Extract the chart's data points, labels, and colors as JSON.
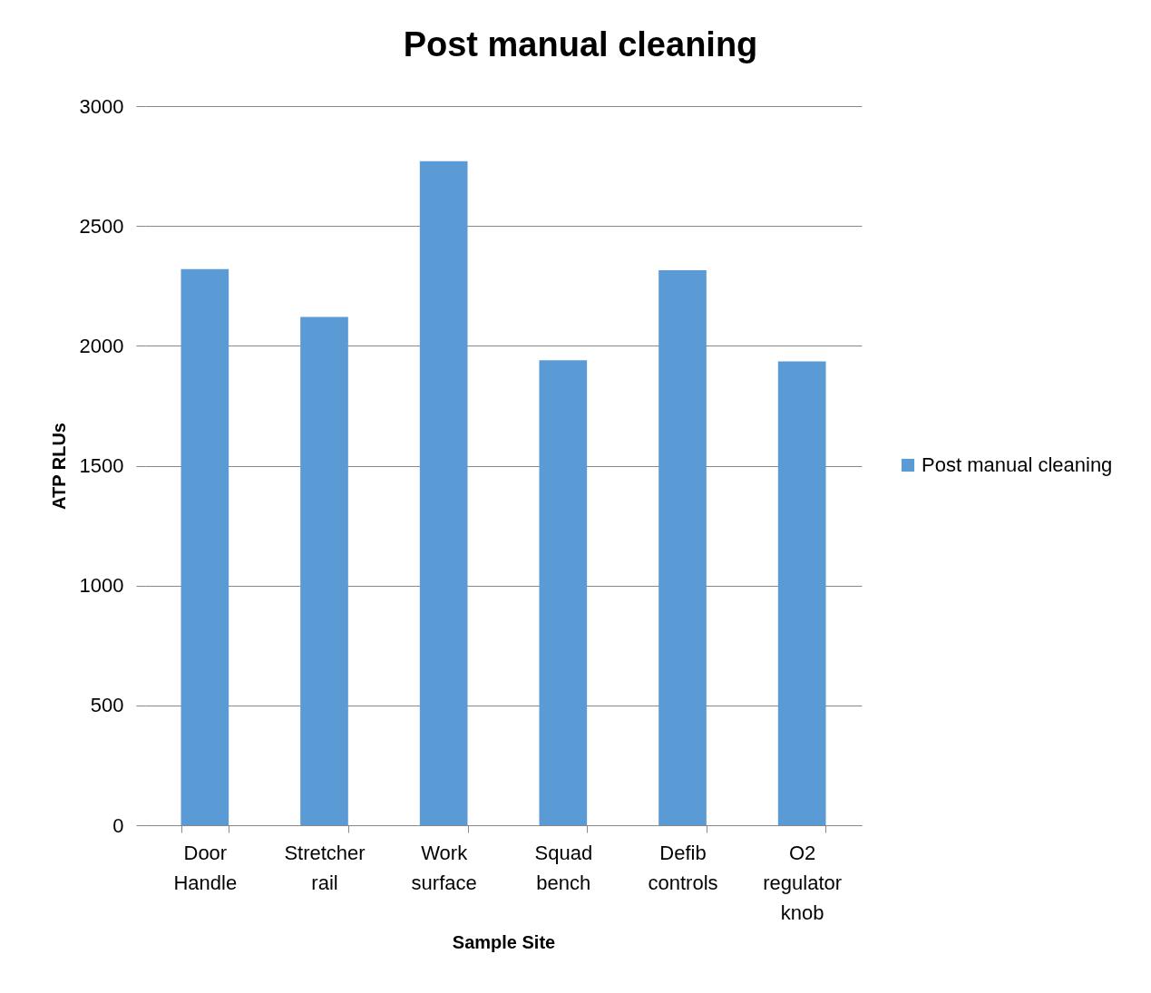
{
  "chart_data": {
    "type": "bar",
    "title": "Post manual cleaning",
    "xlabel": "Sample Site",
    "ylabel": "ATP RLUs",
    "categories": [
      "Door Handle",
      "Stretcher rail",
      "Work surface",
      "Squad bench",
      "Defib controls",
      "O2 regulator knob"
    ],
    "series": [
      {
        "name": "Post manual cleaning",
        "color": "#5b9bd5",
        "values": [
          2320,
          2120,
          2770,
          1940,
          2315,
          1935
        ]
      }
    ],
    "ylim": [
      0,
      3000
    ],
    "yticks": [
      0,
      500,
      {
        "value": 1000,
        "label": "1000"
      },
      {
        "value": 1500,
        "label": "1500"
      },
      {
        "value": 2000,
        "label": "2000"
      },
      {
        "value": 2500,
        "label": "2500"
      },
      {
        "value": 3000,
        "label": "3000"
      }
    ],
    "grid": "y",
    "legend": "right"
  }
}
